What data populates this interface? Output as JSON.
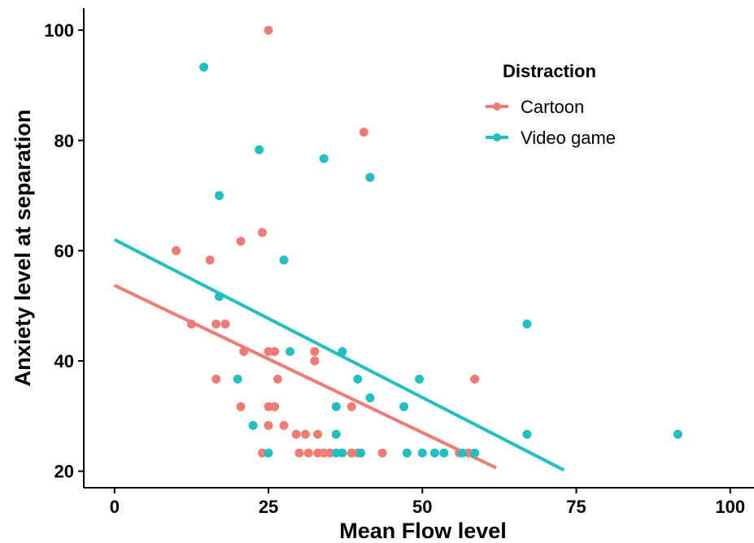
{
  "chart_data": {
    "type": "scatter",
    "xlabel": "Mean Flow level",
    "ylabel": "Anxiety level at separation",
    "xlim": [
      -5,
      104
    ],
    "ylim": [
      17,
      104
    ],
    "x_ticks": [
      "0",
      "25",
      "50",
      "75",
      "100"
    ],
    "x_tick_values": [
      0,
      25,
      50,
      75,
      100
    ],
    "y_ticks": [
      "20",
      "40",
      "60",
      "80",
      "100"
    ],
    "y_tick_values": [
      20,
      40,
      60,
      80,
      100
    ],
    "grid": false,
    "legend": {
      "title": "Distraction",
      "position": "top-right"
    },
    "series": [
      {
        "name": "Cartoon",
        "color": "#F07B72",
        "points": [
          [
            25,
            100
          ],
          [
            40.5,
            81.5
          ],
          [
            24,
            63.3
          ],
          [
            20.5,
            61.7
          ],
          [
            10,
            60
          ],
          [
            15.5,
            58.3
          ],
          [
            12.5,
            46.7
          ],
          [
            16.5,
            46.7
          ],
          [
            18,
            46.7
          ],
          [
            21,
            41.7
          ],
          [
            25,
            41.7
          ],
          [
            26,
            41.7
          ],
          [
            32.5,
            41.7
          ],
          [
            32.5,
            40
          ],
          [
            16.5,
            36.7
          ],
          [
            26.5,
            36.7
          ],
          [
            58.5,
            36.7
          ],
          [
            20.5,
            31.7
          ],
          [
            25,
            31.7
          ],
          [
            26,
            31.7
          ],
          [
            38.5,
            31.7
          ],
          [
            25,
            28.3
          ],
          [
            27.5,
            28.3
          ],
          [
            29.5,
            26.7
          ],
          [
            31,
            26.7
          ],
          [
            33,
            26.7
          ],
          [
            24,
            23.3
          ],
          [
            30,
            23.3
          ],
          [
            31.5,
            23.3
          ],
          [
            33,
            23.3
          ],
          [
            34,
            23.3
          ],
          [
            35,
            23.3
          ],
          [
            38.5,
            23.3
          ],
          [
            39.5,
            23.3
          ],
          [
            43.5,
            23.3
          ],
          [
            47.5,
            23.3
          ],
          [
            56,
            23.3
          ],
          [
            57.5,
            23.3
          ]
        ],
        "trend": {
          "x": [
            0,
            62
          ],
          "y": [
            53.7,
            20.6
          ]
        }
      },
      {
        "name": "Video game",
        "color": "#1FBFC3",
        "points": [
          [
            14.5,
            93.3
          ],
          [
            23.5,
            78.3
          ],
          [
            34,
            76.7
          ],
          [
            41.5,
            73.3
          ],
          [
            17,
            70
          ],
          [
            27.5,
            58.3
          ],
          [
            17,
            51.7
          ],
          [
            67,
            46.7
          ],
          [
            28.5,
            41.7
          ],
          [
            37,
            41.7
          ],
          [
            20,
            36.7
          ],
          [
            39.5,
            36.7
          ],
          [
            49.5,
            36.7
          ],
          [
            41.5,
            33.3
          ],
          [
            36,
            31.7
          ],
          [
            47,
            31.7
          ],
          [
            22.5,
            28.3
          ],
          [
            36,
            26.7
          ],
          [
            67,
            26.7
          ],
          [
            91.5,
            26.7
          ],
          [
            25,
            23.3
          ],
          [
            36,
            23.3
          ],
          [
            37,
            23.3
          ],
          [
            40,
            23.3
          ],
          [
            47.5,
            23.3
          ],
          [
            50,
            23.3
          ],
          [
            52,
            23.3
          ],
          [
            53.5,
            23.3
          ],
          [
            56.5,
            23.3
          ],
          [
            58.5,
            23.3
          ]
        ],
        "trend": {
          "x": [
            0,
            73
          ],
          "y": [
            62,
            20.2
          ]
        }
      }
    ]
  }
}
